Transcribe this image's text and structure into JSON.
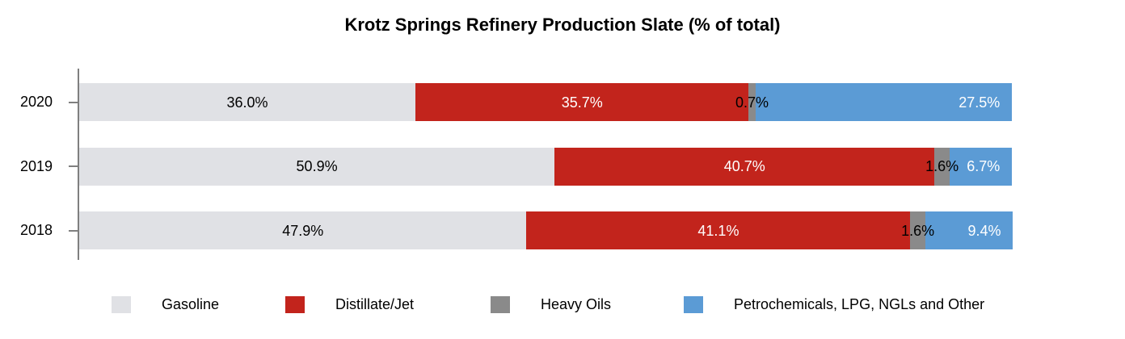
{
  "title": "Krotz Springs Refinery Production Slate (% of total)",
  "chart_data": {
    "type": "bar",
    "subtype": "horizontal-stacked",
    "title": "Krotz Springs Refinery Production Slate (% of total)",
    "categories": [
      "2020",
      "2019",
      "2018"
    ],
    "series": [
      {
        "name": "Gasoline",
        "color": "#e0e1e5",
        "label_color": "#000000",
        "values": [
          36.0,
          50.9,
          47.9
        ]
      },
      {
        "name": "Distillate/Jet",
        "color": "#c2241c",
        "label_color": "#ffffff",
        "values": [
          35.7,
          40.7,
          41.1
        ]
      },
      {
        "name": "Heavy Oils",
        "color": "#8a8a8a",
        "label_color": "#000000",
        "values": [
          0.7,
          1.6,
          1.6
        ]
      },
      {
        "name": "Petrochemicals, LPG, NGLs and Other",
        "color": "#5b9bd5",
        "label_color": "#ffffff",
        "values": [
          27.5,
          6.7,
          9.4
        ]
      }
    ],
    "data_labels": {
      "2020": [
        "36.0%",
        "35.7%",
        "0.7%",
        "27.5%"
      ],
      "2019": [
        "50.9%",
        "40.7%",
        "1.6%",
        "6.7%"
      ],
      "2018": [
        "47.9%",
        "41.1%",
        "1.6%",
        "9.4%"
      ]
    },
    "value_suffix": "%",
    "xlim": [
      0,
      100
    ],
    "xlabel": "",
    "ylabel": "",
    "grid": false,
    "legend_position": "bottom",
    "axis_color": "#7f7f7f"
  }
}
